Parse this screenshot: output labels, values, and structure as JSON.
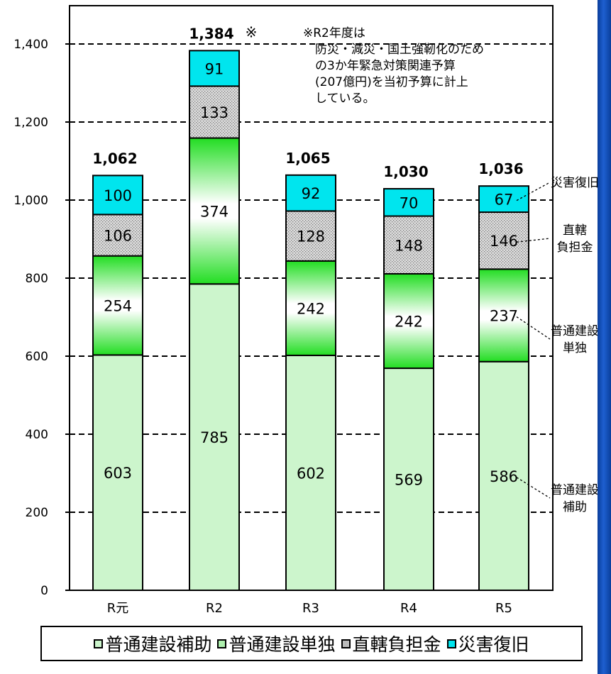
{
  "chart_data": {
    "type": "bar",
    "stacked": true,
    "categories": [
      "R元",
      "R2",
      "R3",
      "R4",
      "R5"
    ],
    "series": [
      {
        "name": "普通建設補助",
        "values": [
          603,
          785,
          602,
          569,
          586
        ],
        "color": "#ccf5cc"
      },
      {
        "name": "普通建設単独",
        "values": [
          254,
          374,
          242,
          242,
          237
        ],
        "color": "#33dd33"
      },
      {
        "name": "直轄負担金",
        "values": [
          106,
          133,
          128,
          148,
          146
        ],
        "color": "#bbbbbb"
      },
      {
        "name": "災害復旧",
        "values": [
          100,
          91,
          92,
          70,
          67
        ],
        "color": "#00e5ee"
      }
    ],
    "totals": [
      "1,062",
      "1,384",
      "1,065",
      "1,030",
      "1,036"
    ],
    "total_marks": [
      "",
      "※",
      "",
      "",
      ""
    ],
    "ylim": [
      0,
      1400
    ],
    "yticks": [
      0,
      200,
      400,
      600,
      800,
      1000,
      1200,
      1400
    ],
    "ytick_labels": [
      "0",
      "200",
      "400",
      "600",
      "800",
      "1,000",
      "1,200",
      "1,400"
    ],
    "grid": true,
    "right_labels": [
      {
        "series": "災害復旧",
        "lines": [
          "災害復旧"
        ]
      },
      {
        "series": "直轄負担金",
        "lines": [
          "直轄",
          "負担金"
        ]
      },
      {
        "series": "普通建設単独",
        "lines": [
          "普通建設",
          "単独"
        ]
      },
      {
        "series": "普通建設補助",
        "lines": [
          "普通建設",
          "補助"
        ]
      }
    ],
    "legend_position": "bottom"
  },
  "note": {
    "lines": [
      "※R2年度は",
      "　防災・減災・国土強靭化のため",
      "　の3か年緊急対策関連予算",
      "　(207億円)を当初予算に計上",
      "　している。"
    ]
  },
  "legend": {
    "items": [
      {
        "label": "普通建設補助",
        "color": "#ccf5cc"
      },
      {
        "label": "普通建設単独",
        "color": "#aef0ae"
      },
      {
        "label": "直轄負担金",
        "color": "#cccccc"
      },
      {
        "label": "災害復旧",
        "color": "#00e5ee"
      }
    ]
  }
}
